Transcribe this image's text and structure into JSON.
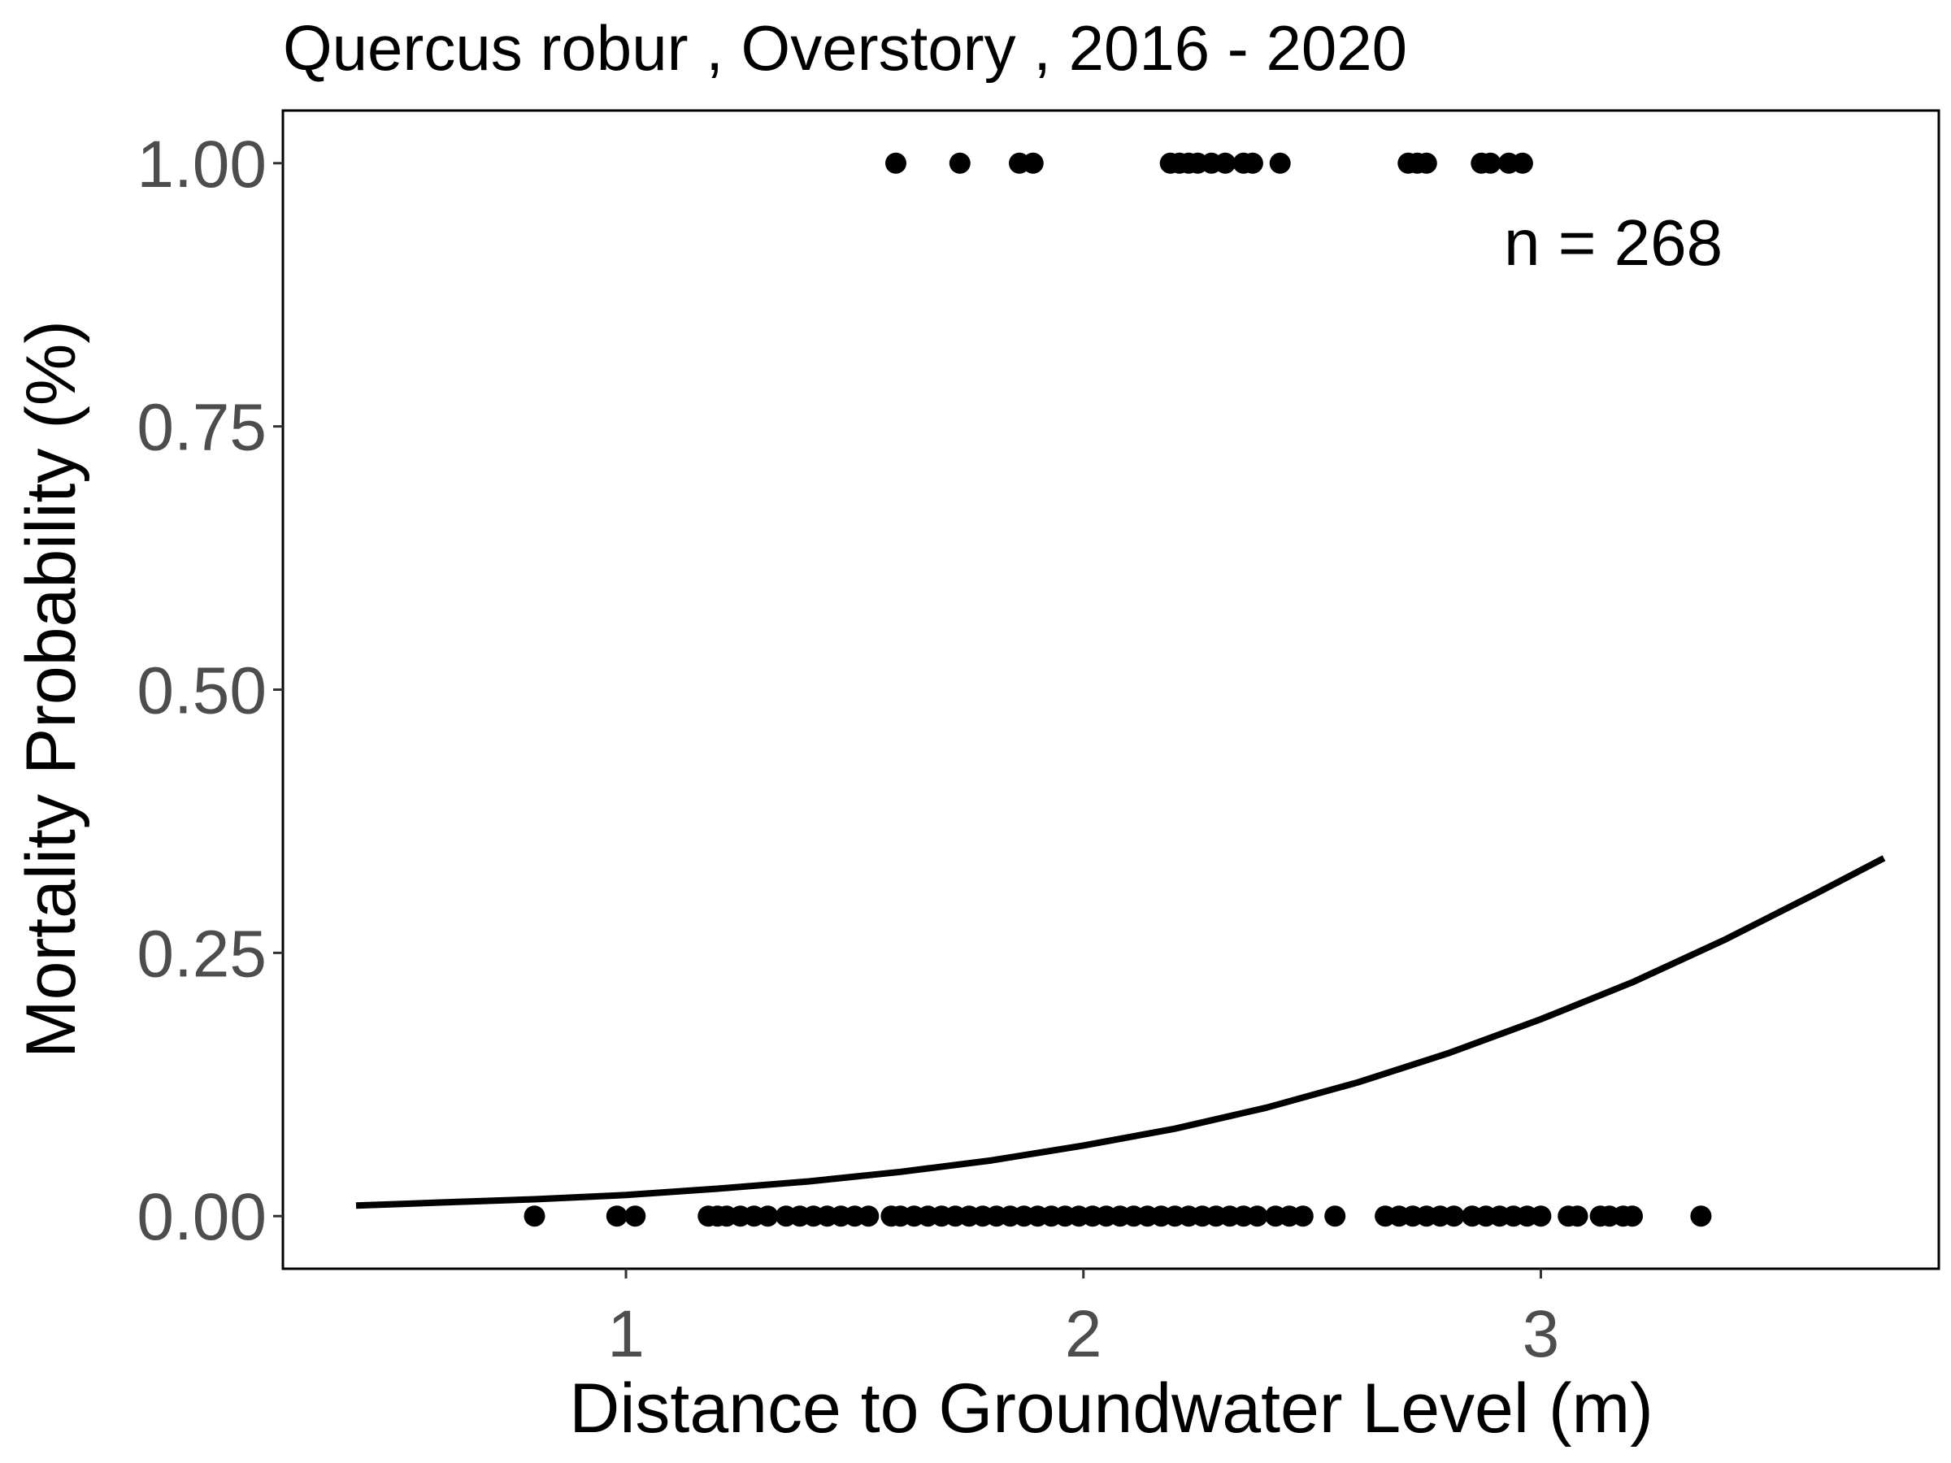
{
  "chart_data": {
    "type": "scatter",
    "title": "Quercus robur , Overstory , 2016 - 2020",
    "xlabel": "Distance to Groundwater Level (m)",
    "ylabel": "Mortality Probability (%)",
    "annotation": "n =  268",
    "xlim": [
      0.25,
      3.87
    ],
    "ylim": [
      -0.05,
      1.05
    ],
    "x_ticks": [
      1,
      2,
      3
    ],
    "x_tick_labels": [
      "1",
      "2",
      "3"
    ],
    "y_ticks": [
      0,
      0.25,
      0.5,
      0.75,
      1
    ],
    "y_tick_labels": [
      "0.00",
      "0.25",
      "0.50",
      "0.75",
      "1.00"
    ],
    "grid": false,
    "legend": "none",
    "colors": {
      "points": "#000000",
      "curve": "#000000",
      "frame": "#000000",
      "tick_text": "#4d4d4d"
    },
    "series": [
      {
        "type": "scatter",
        "y_value": 1,
        "x": [
          1.59,
          1.73,
          1.86,
          1.89,
          2.19,
          2.21,
          2.23,
          2.25,
          2.28,
          2.31,
          2.35,
          2.37,
          2.43,
          2.71,
          2.73,
          2.75,
          2.87,
          2.89,
          2.93,
          2.96
        ]
      },
      {
        "type": "scatter",
        "y_value": 0,
        "x": [
          0.8,
          0.98,
          1.02,
          1.18,
          1.2,
          1.22,
          1.25,
          1.28,
          1.31,
          1.35,
          1.38,
          1.41,
          1.44,
          1.47,
          1.5,
          1.53,
          1.58,
          1.6,
          1.63,
          1.66,
          1.69,
          1.72,
          1.75,
          1.78,
          1.81,
          1.84,
          1.87,
          1.9,
          1.93,
          1.96,
          1.99,
          2.02,
          2.05,
          2.08,
          2.11,
          2.14,
          2.17,
          2.2,
          2.23,
          2.26,
          2.29,
          2.32,
          2.35,
          2.38,
          2.42,
          2.45,
          2.48,
          2.55,
          2.66,
          2.69,
          2.72,
          2.75,
          2.78,
          2.81,
          2.85,
          2.88,
          2.91,
          2.94,
          2.97,
          3.0,
          3.06,
          3.08,
          3.13,
          3.15,
          3.18,
          3.2,
          3.35
        ]
      },
      {
        "type": "line",
        "x": [
          0.41,
          0.6,
          0.8,
          1.0,
          1.2,
          1.4,
          1.6,
          1.8,
          2.0,
          2.2,
          2.4,
          2.6,
          2.8,
          3.0,
          3.2,
          3.4,
          3.6,
          3.75
        ],
        "y": [
          0.01,
          0.013,
          0.016,
          0.02,
          0.026,
          0.033,
          0.042,
          0.053,
          0.067,
          0.083,
          0.103,
          0.127,
          0.155,
          0.187,
          0.222,
          0.262,
          0.306,
          0.34
        ]
      }
    ]
  }
}
